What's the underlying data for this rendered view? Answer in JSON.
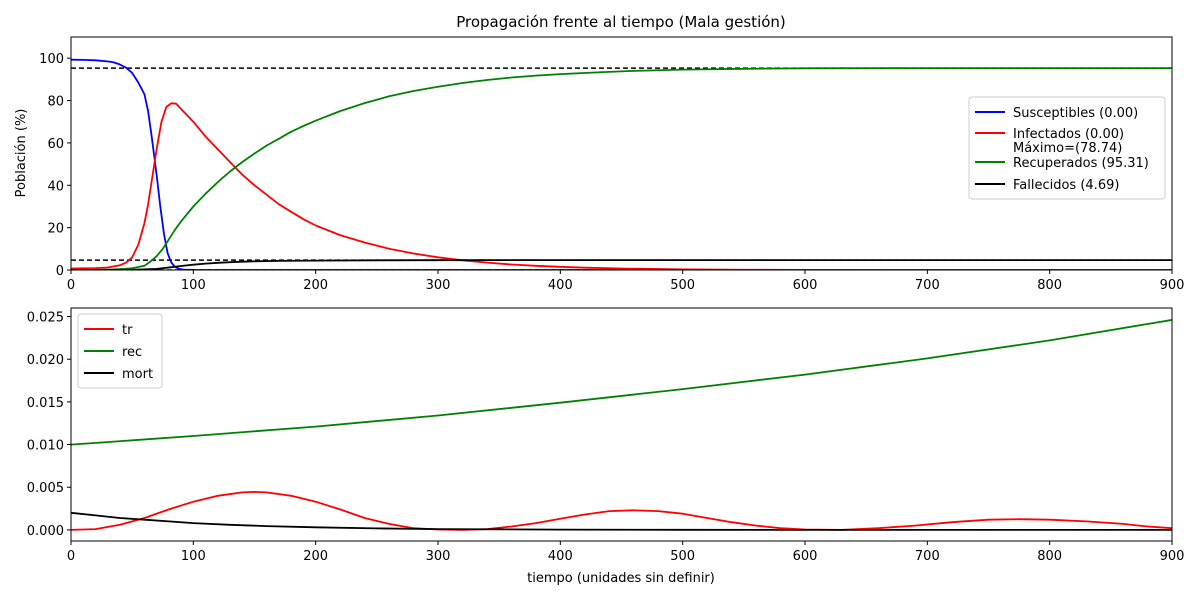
{
  "chart_data": [
    {
      "type": "line",
      "title": "Propagación frente al tiempo (Mala gestión)",
      "ylabel": "Población (%)",
      "xlim": [
        0,
        900
      ],
      "ylim": [
        0,
        110
      ],
      "xticks": [
        0,
        100,
        200,
        300,
        400,
        500,
        600,
        700,
        800,
        900
      ],
      "yticks": [
        0,
        20,
        40,
        60,
        80,
        100
      ],
      "legend_position": "center-right",
      "reference_lines": [
        {
          "y": 95.31,
          "style": "dashed",
          "color": "#000000"
        },
        {
          "y": 4.69,
          "style": "dashed",
          "color": "#000000"
        },
        {
          "y": 0,
          "style": "dashed",
          "color": "#000000"
        }
      ],
      "series": [
        {
          "name": "Susceptibles (0.00)",
          "color": "#0000ff",
          "points": [
            [
              0,
              99.3
            ],
            [
              10,
              99.2
            ],
            [
              20,
              99.0
            ],
            [
              30,
              98.5
            ],
            [
              35,
              98.0
            ],
            [
              40,
              97.0
            ],
            [
              45,
              95.5
            ],
            [
              50,
              93.0
            ],
            [
              55,
              88.5
            ],
            [
              60,
              83
            ],
            [
              63,
              75
            ],
            [
              66,
              63
            ],
            [
              70,
              45
            ],
            [
              73,
              30
            ],
            [
              76,
              17
            ],
            [
              79,
              8
            ],
            [
              82,
              3.5
            ],
            [
              85,
              1.5
            ],
            [
              88,
              0.6
            ],
            [
              92,
              0.2
            ],
            [
              100,
              0.05
            ],
            [
              120,
              0
            ],
            [
              900,
              0
            ]
          ]
        },
        {
          "name": "Infectados (0.00)\nMáximo=(78.74)",
          "color": "#ff0000",
          "points": [
            [
              0,
              0.7
            ],
            [
              10,
              0.8
            ],
            [
              20,
              0.9
            ],
            [
              30,
              1.2
            ],
            [
              40,
              2.2
            ],
            [
              45,
              3.5
            ],
            [
              50,
              6
            ],
            [
              55,
              12
            ],
            [
              60,
              22
            ],
            [
              63,
              31
            ],
            [
              66,
              42
            ],
            [
              70,
              57
            ],
            [
              74,
              70
            ],
            [
              78,
              77
            ],
            [
              82,
              78.7
            ],
            [
              86,
              78.5
            ],
            [
              90,
              76
            ],
            [
              100,
              70
            ],
            [
              110,
              63
            ],
            [
              120,
              57
            ],
            [
              130,
              51
            ],
            [
              140,
              45
            ],
            [
              150,
              40
            ],
            [
              160,
              35.5
            ],
            [
              170,
              31
            ],
            [
              180,
              27.5
            ],
            [
              190,
              24
            ],
            [
              200,
              21
            ],
            [
              220,
              16.5
            ],
            [
              240,
              13
            ],
            [
              260,
              10
            ],
            [
              280,
              7.8
            ],
            [
              300,
              6
            ],
            [
              320,
              4.6
            ],
            [
              340,
              3.5
            ],
            [
              360,
              2.6
            ],
            [
              380,
              2.0
            ],
            [
              400,
              1.5
            ],
            [
              420,
              1.1
            ],
            [
              450,
              0.7
            ],
            [
              500,
              0.3
            ],
            [
              550,
              0.1
            ],
            [
              600,
              0.05
            ],
            [
              700,
              0
            ],
            [
              900,
              0
            ]
          ]
        },
        {
          "name": "Recuperados (95.31)",
          "color": "#008000",
          "points": [
            [
              0,
              0
            ],
            [
              30,
              0.2
            ],
            [
              40,
              0.4
            ],
            [
              50,
              0.8
            ],
            [
              60,
              2
            ],
            [
              65,
              4
            ],
            [
              70,
              6.5
            ],
            [
              75,
              10
            ],
            [
              80,
              14.5
            ],
            [
              85,
              19
            ],
            [
              90,
              23
            ],
            [
              100,
              30
            ],
            [
              110,
              36
            ],
            [
              120,
              41.5
            ],
            [
              130,
              46.5
            ],
            [
              140,
              51
            ],
            [
              150,
              55
            ],
            [
              160,
              58.8
            ],
            [
              170,
              62
            ],
            [
              180,
              65.3
            ],
            [
              190,
              68
            ],
            [
              200,
              70.5
            ],
            [
              220,
              75
            ],
            [
              240,
              78.8
            ],
            [
              260,
              82
            ],
            [
              280,
              84.5
            ],
            [
              300,
              86.5
            ],
            [
              320,
              88.3
            ],
            [
              340,
              89.7
            ],
            [
              360,
              90.9
            ],
            [
              380,
              91.8
            ],
            [
              400,
              92.5
            ],
            [
              430,
              93.3
            ],
            [
              460,
              94
            ],
            [
              500,
              94.6
            ],
            [
              550,
              95
            ],
            [
              600,
              95.2
            ],
            [
              700,
              95.3
            ],
            [
              900,
              95.31
            ]
          ]
        },
        {
          "name": "Fallecidos (4.69)",
          "color": "#000000",
          "points": [
            [
              0,
              0
            ],
            [
              50,
              0.1
            ],
            [
              70,
              0.5
            ],
            [
              80,
              1.2
            ],
            [
              90,
              1.9
            ],
            [
              100,
              2.5
            ],
            [
              110,
              3.0
            ],
            [
              120,
              3.4
            ],
            [
              130,
              3.7
            ],
            [
              140,
              3.9
            ],
            [
              150,
              4.1
            ],
            [
              170,
              4.3
            ],
            [
              200,
              4.45
            ],
            [
              250,
              4.6
            ],
            [
              300,
              4.65
            ],
            [
              400,
              4.68
            ],
            [
              900,
              4.69
            ]
          ]
        }
      ]
    },
    {
      "type": "line",
      "xlabel": "tiempo (unidades sin definir)",
      "xlim": [
        0,
        900
      ],
      "ylim": [
        -0.0013,
        0.026
      ],
      "xticks": [
        0,
        100,
        200,
        300,
        400,
        500,
        600,
        700,
        800,
        900
      ],
      "yticks": [
        0.0,
        0.005,
        0.01,
        0.015,
        0.02,
        0.025
      ],
      "ytick_labels": [
        "0.000",
        "0.005",
        "0.010",
        "0.015",
        "0.020",
        "0.025"
      ],
      "legend_position": "upper-left",
      "series": [
        {
          "name": "tr",
          "color": "#ff0000",
          "points": [
            [
              0,
              0
            ],
            [
              20,
              0.0001
            ],
            [
              40,
              0.0006
            ],
            [
              60,
              0.0014
            ],
            [
              80,
              0.0024
            ],
            [
              100,
              0.0033
            ],
            [
              120,
              0.004
            ],
            [
              140,
              0.0044
            ],
            [
              150,
              0.00445
            ],
            [
              160,
              0.0044
            ],
            [
              180,
              0.004
            ],
            [
              200,
              0.0033
            ],
            [
              220,
              0.0024
            ],
            [
              240,
              0.0014
            ],
            [
              260,
              0.0007
            ],
            [
              280,
              0.0002
            ],
            [
              300,
              5e-05
            ],
            [
              320,
              0.0
            ],
            [
              340,
              0.0001
            ],
            [
              360,
              0.0004
            ],
            [
              380,
              0.0008
            ],
            [
              400,
              0.0013
            ],
            [
              420,
              0.0018
            ],
            [
              440,
              0.0022
            ],
            [
              460,
              0.0023
            ],
            [
              480,
              0.0022
            ],
            [
              500,
              0.0019
            ],
            [
              520,
              0.0014
            ],
            [
              540,
              0.0009
            ],
            [
              560,
              0.0005
            ],
            [
              580,
              0.0002
            ],
            [
              600,
              5e-05
            ],
            [
              630,
              0.0
            ],
            [
              660,
              0.0002
            ],
            [
              690,
              0.0005
            ],
            [
              720,
              0.0009
            ],
            [
              750,
              0.0012
            ],
            [
              775,
              0.00125
            ],
            [
              800,
              0.0012
            ],
            [
              830,
              0.001
            ],
            [
              860,
              0.0007
            ],
            [
              880,
              0.0004
            ],
            [
              900,
              0.0002
            ]
          ]
        },
        {
          "name": "rec",
          "color": "#008000",
          "points": [
            [
              0,
              0.01
            ],
            [
              100,
              0.011
            ],
            [
              200,
              0.0121
            ],
            [
              300,
              0.0134
            ],
            [
              400,
              0.0149
            ],
            [
              500,
              0.0165
            ],
            [
              600,
              0.0182
            ],
            [
              700,
              0.0201
            ],
            [
              800,
              0.0222
            ],
            [
              900,
              0.0246
            ]
          ]
        },
        {
          "name": "mort",
          "color": "#000000",
          "points": [
            [
              0,
              0.002
            ],
            [
              20,
              0.0017
            ],
            [
              40,
              0.0014
            ],
            [
              60,
              0.0012
            ],
            [
              80,
              0.001
            ],
            [
              100,
              0.0008
            ],
            [
              130,
              0.0006
            ],
            [
              160,
              0.00045
            ],
            [
              200,
              0.0003
            ],
            [
              250,
              0.00018
            ],
            [
              300,
              0.0001
            ],
            [
              400,
              4e-05
            ],
            [
              500,
              1e-05
            ],
            [
              600,
              0.0
            ],
            [
              900,
              0.0
            ]
          ]
        }
      ]
    }
  ]
}
